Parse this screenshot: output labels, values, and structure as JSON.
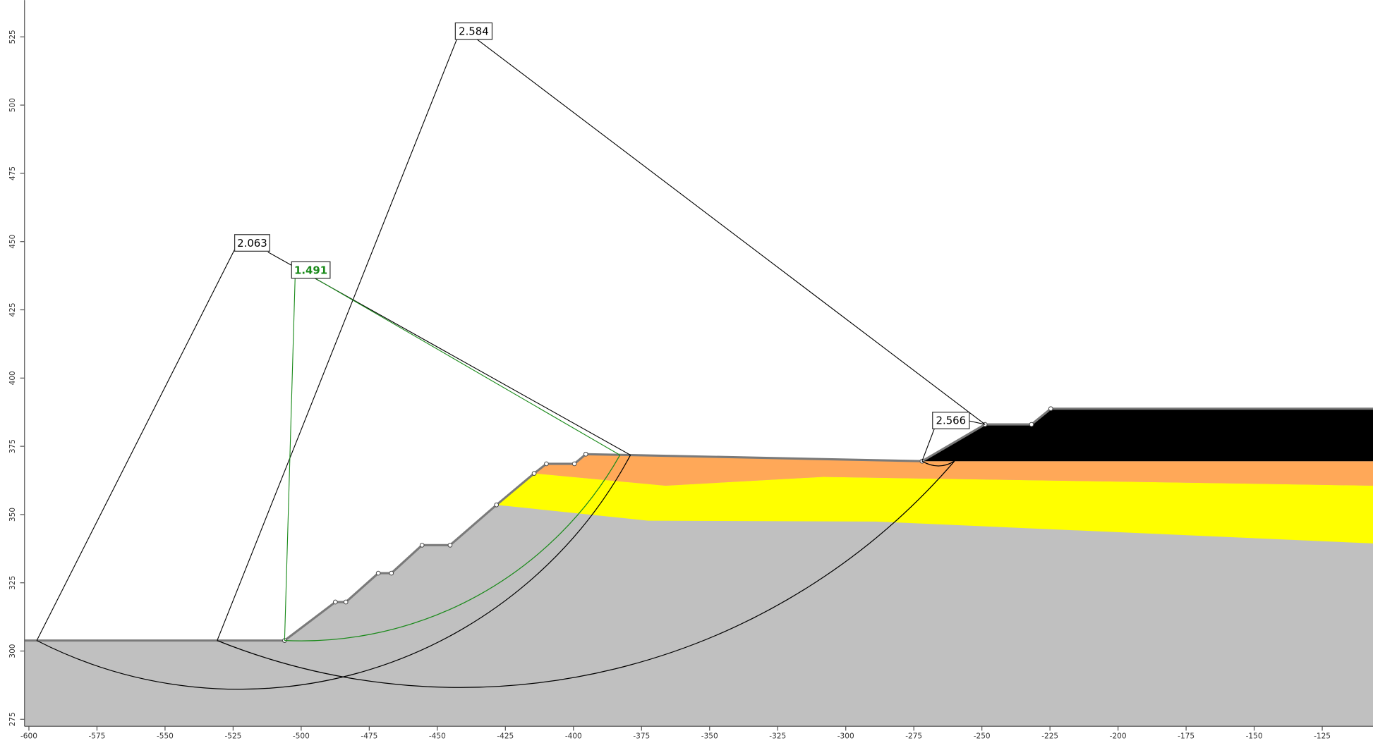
{
  "axes": {
    "xlim": [
      -601.61,
      -106.36
    ],
    "ylim": [
      272.44,
      538.46
    ],
    "xticks": [
      -600,
      -575,
      -550,
      -525,
      -500,
      -475,
      -450,
      -425,
      -400,
      -375,
      -350,
      -325,
      -300,
      -275,
      -250,
      -225,
      -200,
      -175,
      -150,
      -125
    ],
    "yticks": [
      275,
      300,
      325,
      350,
      375,
      400,
      425,
      450,
      475,
      500,
      525
    ]
  },
  "slip_surfaces": [
    {
      "factor_of_safety": 2.063,
      "color": "#000000"
    },
    {
      "factor_of_safety": 2.584,
      "color": "#000000"
    },
    {
      "factor_of_safety": 1.491,
      "color": "#1a8a1a"
    },
    {
      "factor_of_safety": 2.566,
      "color": "#000000"
    }
  ]
}
